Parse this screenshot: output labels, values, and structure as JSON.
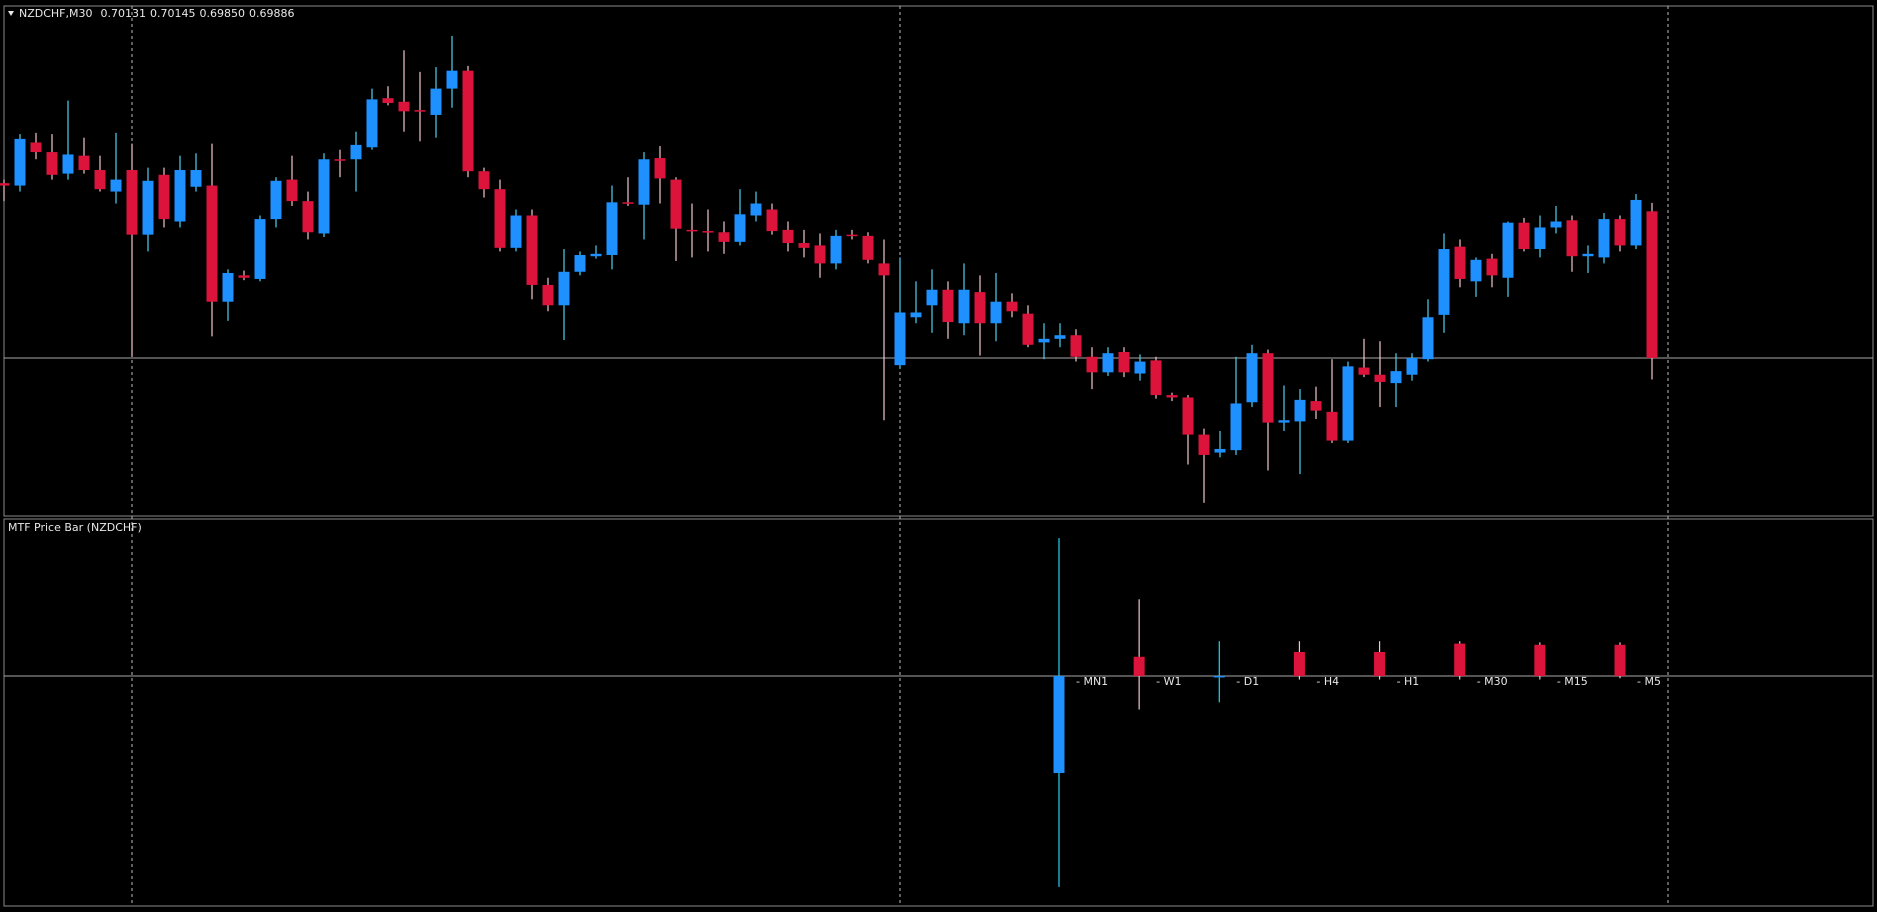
{
  "chart_data": [
    {
      "type": "candlestick",
      "title": "NZDCHF,M30",
      "ohlc": [
        {
          "value": 0.70131,
          "label": "0.70131"
        },
        {
          "value": 0.70145,
          "label": "0.70145"
        },
        {
          "value": 0.6985,
          "label": "0.69850"
        },
        {
          "value": 0.69886,
          "label": "0.69886"
        }
      ],
      "up_color": "#1e90ff",
      "down_color": "#dc143c",
      "up_wick_color": "#4fd2f0",
      "down_wick_color": "#f2c4cc",
      "ylim": [
        0.69622,
        0.70474
      ],
      "open": [
        0.70178,
        0.70174,
        0.70246,
        0.7023,
        0.70194,
        0.70224,
        0.702,
        0.70164,
        0.702,
        0.70092,
        0.70192,
        0.70114,
        0.70172,
        0.70174,
        0.6998,
        0.70024,
        0.70018,
        0.70118,
        0.70184,
        0.70148,
        0.70094,
        0.70218,
        0.70218,
        0.70238,
        0.7032,
        0.70314,
        0.703,
        0.70292,
        0.70336,
        0.70366,
        0.70198,
        0.70168,
        0.7007,
        0.70124,
        0.70008,
        0.69974,
        0.7003,
        0.70056,
        0.70058,
        0.70146,
        0.70142,
        0.7022,
        0.70184,
        0.701,
        0.70098,
        0.70096,
        0.7008,
        0.70124,
        0.70134,
        0.701,
        0.70078,
        0.70074,
        0.70044,
        0.70092,
        0.7009,
        0.70044,
        0.69874,
        0.69954,
        0.69974,
        0.7,
        0.69944,
        0.69996,
        0.69944,
        0.6998,
        0.6996,
        0.69912,
        0.69918,
        0.69924,
        0.69888,
        0.69862,
        0.69896,
        0.6986,
        0.69882,
        0.69824,
        0.6982,
        0.69758,
        0.69728,
        0.69732,
        0.69812,
        0.69894,
        0.69778,
        0.6978,
        0.69814,
        0.69796,
        0.69748,
        0.6987,
        0.69858,
        0.69844,
        0.69858,
        0.69884,
        0.69958,
        0.70072,
        0.70014,
        0.70052,
        0.7002,
        0.70112,
        0.70068,
        0.70104,
        0.70116,
        0.70056,
        0.70054,
        0.70118,
        0.70074,
        0.70131
      ],
      "high": [
        0.70184,
        0.7026,
        0.70262,
        0.7026,
        0.70316,
        0.70254,
        0.70224,
        0.70262,
        0.70244,
        0.70204,
        0.70204,
        0.70224,
        0.70228,
        0.70244,
        0.70034,
        0.70032,
        0.70124,
        0.70188,
        0.70224,
        0.70164,
        0.70228,
        0.70234,
        0.70264,
        0.70336,
        0.7034,
        0.704,
        0.70364,
        0.70372,
        0.70424,
        0.70374,
        0.70204,
        0.70184,
        0.70134,
        0.70134,
        0.7002,
        0.70068,
        0.70064,
        0.70074,
        0.70174,
        0.70188,
        0.7023,
        0.7024,
        0.70188,
        0.70144,
        0.70134,
        0.70114,
        0.70168,
        0.70164,
        0.70144,
        0.70114,
        0.701,
        0.70094,
        0.701,
        0.701,
        0.70096,
        0.70084,
        0.70054,
        0.70014,
        0.70034,
        0.70014,
        0.70044,
        0.70024,
        0.70028,
        0.69994,
        0.69974,
        0.69944,
        0.69944,
        0.69934,
        0.69904,
        0.69904,
        0.69904,
        0.69892,
        0.69888,
        0.69828,
        0.69824,
        0.69768,
        0.69764,
        0.69888,
        0.69908,
        0.699,
        0.6984,
        0.69834,
        0.69838,
        0.69884,
        0.6988,
        0.69918,
        0.69914,
        0.69894,
        0.69894,
        0.69984,
        0.70094,
        0.70084,
        0.70054,
        0.7006,
        0.70114,
        0.7012,
        0.70124,
        0.7014,
        0.70124,
        0.70074,
        0.70128,
        0.70124,
        0.7016,
        0.70145
      ],
      "low": [
        0.70148,
        0.70164,
        0.70218,
        0.70184,
        0.70184,
        0.70194,
        0.70164,
        0.70144,
        0.69888,
        0.70064,
        0.70104,
        0.70104,
        0.70164,
        0.69922,
        0.69948,
        0.70016,
        0.70014,
        0.70104,
        0.7014,
        0.70084,
        0.70088,
        0.70188,
        0.70164,
        0.70234,
        0.70308,
        0.70264,
        0.70248,
        0.70254,
        0.70304,
        0.70188,
        0.70154,
        0.70064,
        0.70064,
        0.69984,
        0.69964,
        0.69916,
        0.70024,
        0.70052,
        0.70034,
        0.7014,
        0.70084,
        0.70144,
        0.70048,
        0.70054,
        0.70064,
        0.7006,
        0.70074,
        0.70114,
        0.70092,
        0.70064,
        0.70054,
        0.7002,
        0.70034,
        0.70084,
        0.70044,
        0.69782,
        0.69868,
        0.69944,
        0.69928,
        0.69918,
        0.69924,
        0.6989,
        0.69914,
        0.69954,
        0.69904,
        0.69884,
        0.69904,
        0.6988,
        0.69834,
        0.69856,
        0.69854,
        0.69848,
        0.69818,
        0.69814,
        0.69708,
        0.69644,
        0.6972,
        0.69724,
        0.69804,
        0.69698,
        0.69764,
        0.69692,
        0.69784,
        0.69744,
        0.69744,
        0.69854,
        0.69804,
        0.69804,
        0.69848,
        0.6988,
        0.69928,
        0.70004,
        0.69988,
        0.70004,
        0.69988,
        0.70064,
        0.70054,
        0.70094,
        0.7003,
        0.70028,
        0.70044,
        0.70064,
        0.70068,
        0.6985
      ],
      "close": [
        0.70174,
        0.70252,
        0.7023,
        0.70192,
        0.70226,
        0.702,
        0.70168,
        0.70184,
        0.70092,
        0.70182,
        0.70118,
        0.702,
        0.702,
        0.6998,
        0.70028,
        0.7002,
        0.70118,
        0.70182,
        0.70148,
        0.70096,
        0.70218,
        0.70216,
        0.70242,
        0.70318,
        0.70312,
        0.70298,
        0.70298,
        0.70336,
        0.70366,
        0.70198,
        0.70168,
        0.7007,
        0.70124,
        0.70008,
        0.69974,
        0.7003,
        0.70058,
        0.7006,
        0.70146,
        0.70144,
        0.70218,
        0.70186,
        0.70102,
        0.70098,
        0.70096,
        0.7008,
        0.70126,
        0.70144,
        0.70098,
        0.70078,
        0.7007,
        0.70044,
        0.7009,
        0.7009,
        0.7005,
        0.70024,
        0.69962,
        0.69962,
        0.7,
        0.69946,
        0.7,
        0.69944,
        0.6998,
        0.69964,
        0.69908,
        0.69918,
        0.69924,
        0.69888,
        0.69862,
        0.69894,
        0.69862,
        0.6988,
        0.69824,
        0.6982,
        0.69758,
        0.69724,
        0.69734,
        0.6981,
        0.69894,
        0.69778,
        0.69782,
        0.69816,
        0.69798,
        0.69748,
        0.69872,
        0.69858,
        0.69846,
        0.69864,
        0.69886,
        0.69954,
        0.70068,
        0.70018,
        0.7005,
        0.70024,
        0.70112,
        0.70068,
        0.70104,
        0.70114,
        0.70056,
        0.7006,
        0.70118,
        0.70074,
        0.7015,
        0.69886
      ]
    },
    {
      "type": "candlestick",
      "title": "MTF Price Bar (NZDCHF)",
      "up_color": "#1e90ff",
      "down_color": "#dc143c",
      "up_wick_color": "#22d3ee",
      "down_wick_color": "#f2c4cc",
      "ylim": [
        -1.92,
        1.31
      ],
      "categories": [
        "- MN1",
        "- W1",
        "- D1",
        "- H4",
        "- H1",
        "- M30",
        "- M15",
        "- M5"
      ],
      "open": [
        -0.81,
        0.16,
        -0.01,
        0.2,
        0.2,
        0.27,
        0.26,
        0.26
      ],
      "high": [
        1.15,
        0.64,
        0.29,
        0.29,
        0.29,
        0.29,
        0.28,
        0.28
      ],
      "low": [
        -1.76,
        -0.28,
        -0.22,
        -0.03,
        -0.03,
        -0.03,
        -0.03,
        -0.02
      ],
      "close": [
        0,
        0,
        0,
        0,
        0,
        0,
        0,
        0
      ]
    }
  ]
}
